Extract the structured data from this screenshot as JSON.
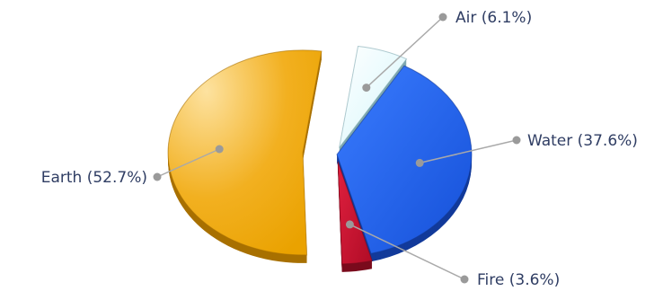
{
  "chart_data": {
    "type": "pie",
    "title": "",
    "legend": "none",
    "slices": [
      {
        "name": "Air",
        "value": 6.1,
        "label": "Air (6.1%)",
        "color": "#e6fbff",
        "edge": "#7fa9b0"
      },
      {
        "name": "Water",
        "value": 37.6,
        "label": "Water (37.6%)",
        "color": "#1f63f0",
        "edge": "#123a9a"
      },
      {
        "name": "Fire",
        "value": 3.6,
        "label": "Fire (3.6%)",
        "color": "#c8102e",
        "edge": "#7a0a1c"
      },
      {
        "name": "Earth",
        "value": 52.7,
        "label": "Earth (52.7%)",
        "color": "#f0a800",
        "edge": "#a87000"
      }
    ]
  }
}
